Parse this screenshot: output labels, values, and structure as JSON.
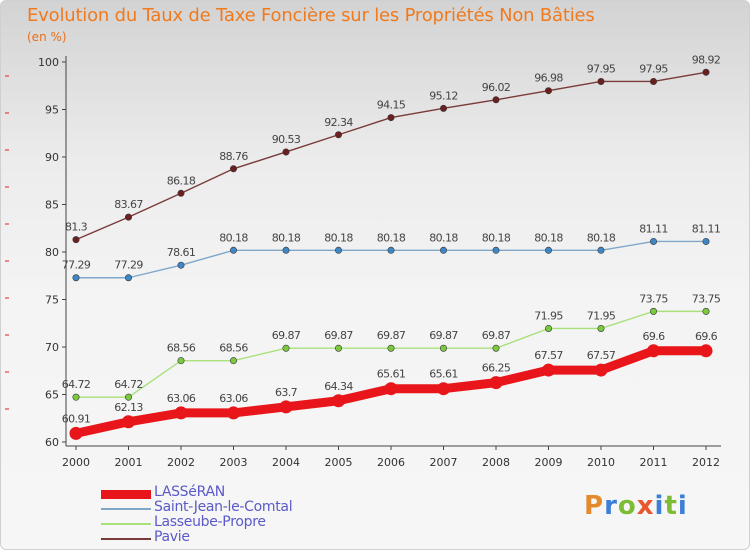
{
  "title": "Evolution du Taux de Taxe Foncière sur les Propriétés Non Bâties",
  "unit": "(en %)",
  "brand": {
    "letters": [
      "P",
      "r",
      "o",
      "x",
      "i",
      "t",
      "i"
    ],
    "colors": [
      "#e58a2b",
      "#3b7fd6",
      "#7cbd35",
      "#e8572e",
      "#3b7fd6",
      "#7cbd35",
      "#3b7fd6"
    ]
  },
  "chart_data": {
    "type": "line",
    "x": [
      "2000",
      "2001",
      "2002",
      "2003",
      "2004",
      "2005",
      "2006",
      "2007",
      "2008",
      "2009",
      "2010",
      "2011",
      "2012"
    ],
    "ylim": [
      60,
      100
    ],
    "yticks": [
      "60",
      "65",
      "70",
      "75",
      "80",
      "85",
      "90",
      "95",
      "100"
    ],
    "grid": false,
    "legend_position": "bottom-left",
    "series": [
      {
        "name": "LASSéRAN",
        "color": "#e8161b",
        "point_color": "#e8161b",
        "values": [
          60.91,
          62.13,
          63.06,
          63.06,
          63.7,
          64.34,
          65.61,
          65.61,
          66.25,
          67.57,
          67.57,
          69.6,
          69.6
        ],
        "labels": [
          "60.91",
          "62.13",
          "63.06",
          "63.06",
          "63.7",
          "64.34",
          "65.61",
          "65.61",
          "66.25",
          "67.57",
          "67.57",
          "69.6",
          "69.6"
        ]
      },
      {
        "name": "Saint-Jean-le-Comtal",
        "color": "#7fa7c9",
        "point_color": "#3e86c4",
        "values": [
          77.29,
          77.29,
          78.61,
          80.18,
          80.18,
          80.18,
          80.18,
          80.18,
          80.18,
          80.18,
          80.18,
          81.11,
          81.11
        ],
        "labels": [
          "77.29",
          "77.29",
          "78.61",
          "80.18",
          "80.18",
          "80.18",
          "80.18",
          "80.18",
          "80.18",
          "80.18",
          "80.18",
          "81.11",
          "81.11"
        ]
      },
      {
        "name": "Lasseube-Propre",
        "color": "#a8e07a",
        "point_color": "#7cc83f",
        "values": [
          64.72,
          64.72,
          68.56,
          68.56,
          69.87,
          69.87,
          69.87,
          69.87,
          69.87,
          71.95,
          71.95,
          73.75,
          73.75
        ],
        "labels": [
          "64.72",
          "64.72",
          "68.56",
          "68.56",
          "69.87",
          "69.87",
          "69.87",
          "69.87",
          "69.87",
          "71.95",
          "71.95",
          "73.75",
          "73.75"
        ]
      },
      {
        "name": "Pavie",
        "color": "#7a3a3a",
        "point_color": "#6b1f1f",
        "values": [
          81.3,
          83.67,
          86.18,
          88.76,
          90.53,
          92.34,
          94.15,
          95.12,
          96.02,
          96.98,
          97.95,
          97.95,
          98.92
        ],
        "labels": [
          "81.3",
          "83.67",
          "86.18",
          "88.76",
          "90.53",
          "92.34",
          "94.15",
          "95.12",
          "96.02",
          "96.98",
          "97.95",
          "97.95",
          "98.92"
        ]
      }
    ]
  }
}
